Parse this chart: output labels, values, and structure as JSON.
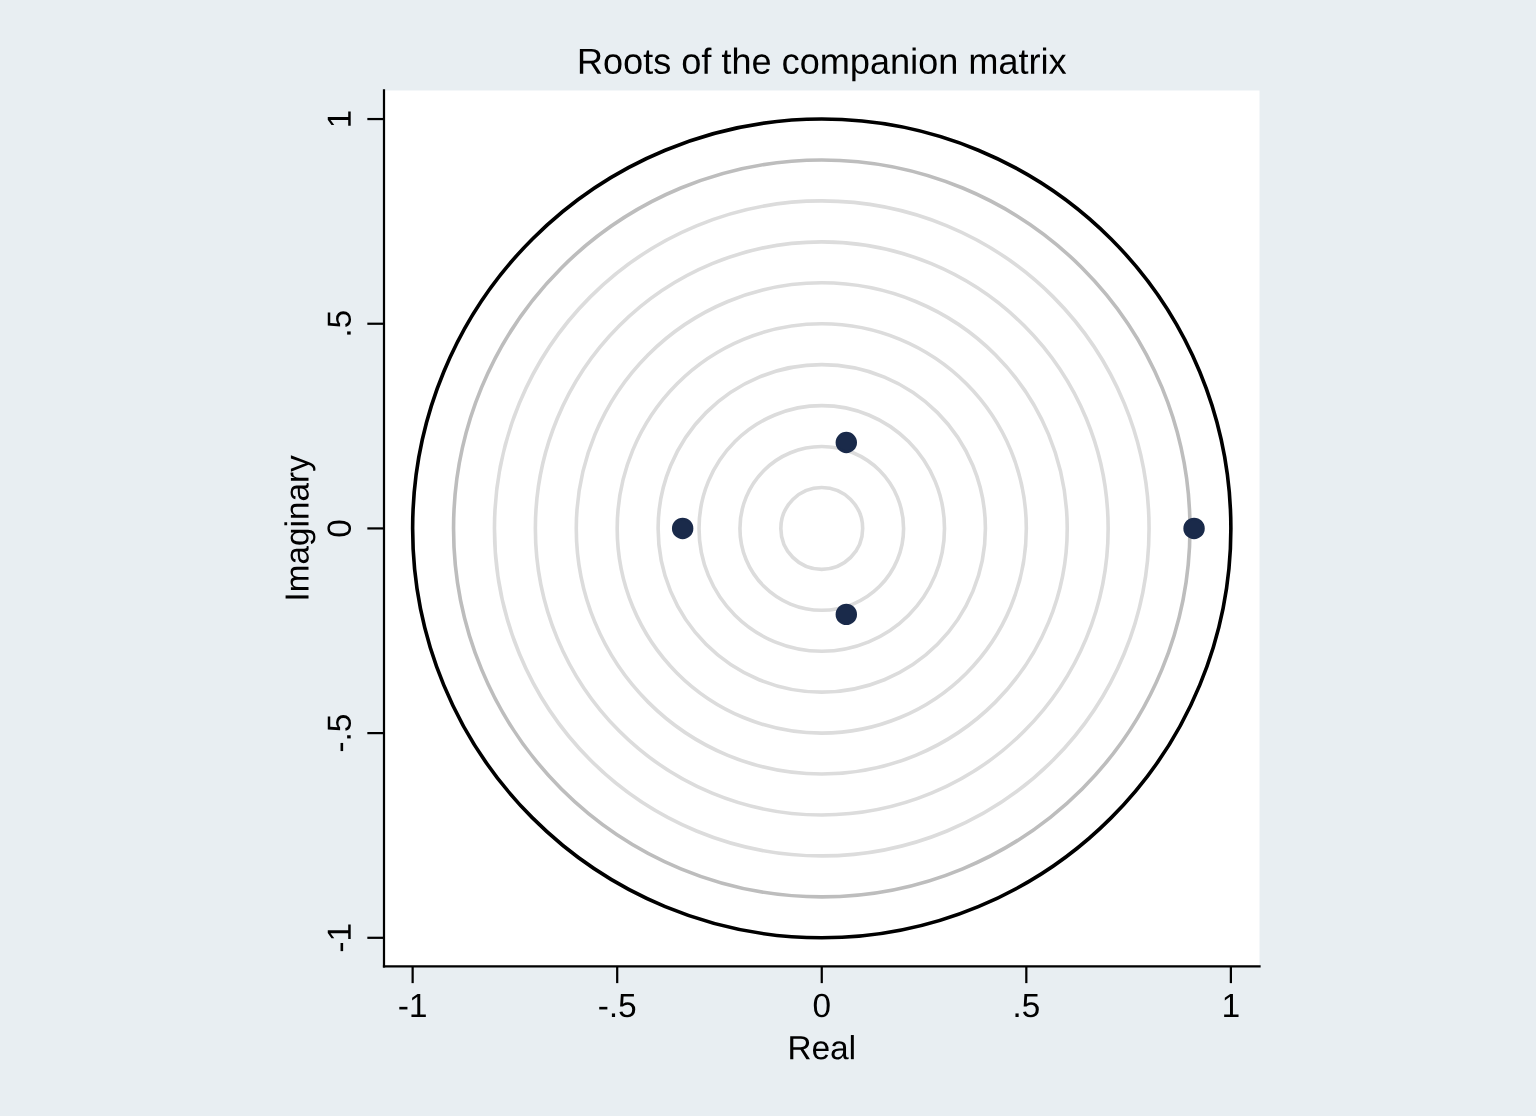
{
  "chart_data": {
    "type": "scatter",
    "title": "Roots of the companion matrix",
    "xlabel": "Real",
    "ylabel": "Imaginary",
    "x": [
      0.91,
      -0.34,
      0.06,
      0.06
    ],
    "series": [
      {
        "color": "#1a2a4a",
        "values": [
          0,
          0,
          0.21,
          -0.21
        ]
      }
    ],
    "marker": "circle",
    "xlim": [
      -1.07,
      1.07
    ],
    "ylim": [
      -1.07,
      1.07
    ],
    "xticks": [
      -1,
      {
        "value": -0.5,
        "label": "-.5"
      },
      0,
      {
        "value": 0.5,
        "label": ".5"
      },
      1
    ],
    "yticks": [
      -1,
      {
        "value": -0.5,
        "label": "-.5"
      },
      0,
      {
        "value": 0.5,
        "label": ".5"
      },
      1
    ],
    "grid": false
  }
}
